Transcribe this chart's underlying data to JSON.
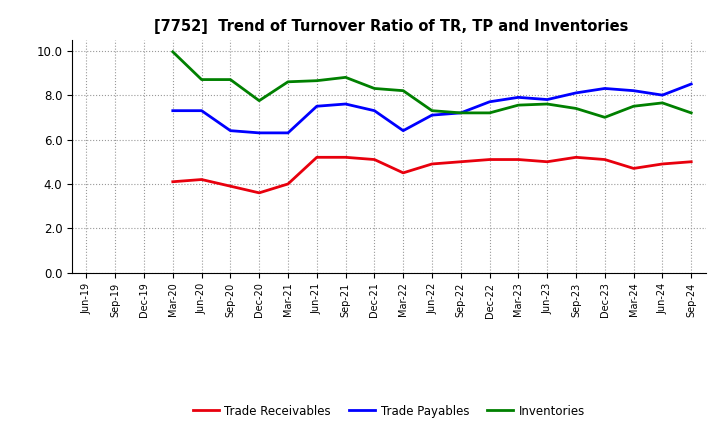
{
  "title": "[7752]  Trend of Turnover Ratio of TR, TP and Inventories",
  "x_labels": [
    "Jun-19",
    "Sep-19",
    "Dec-19",
    "Mar-20",
    "Jun-20",
    "Sep-20",
    "Dec-20",
    "Mar-21",
    "Jun-21",
    "Sep-21",
    "Dec-21",
    "Mar-22",
    "Jun-22",
    "Sep-22",
    "Dec-22",
    "Mar-23",
    "Jun-23",
    "Sep-23",
    "Dec-23",
    "Mar-24",
    "Jun-24",
    "Sep-24"
  ],
  "trade_receivables": [
    null,
    null,
    null,
    4.1,
    4.2,
    3.9,
    3.6,
    4.0,
    5.2,
    5.2,
    5.1,
    4.5,
    4.9,
    5.0,
    5.1,
    5.1,
    5.0,
    5.2,
    5.1,
    4.7,
    4.9,
    5.0
  ],
  "trade_payables": [
    null,
    null,
    null,
    7.3,
    7.3,
    6.4,
    6.3,
    6.3,
    7.5,
    7.6,
    7.3,
    6.4,
    7.1,
    7.2,
    7.7,
    7.9,
    7.8,
    8.1,
    8.3,
    8.2,
    8.0,
    8.5
  ],
  "inventories": [
    null,
    null,
    null,
    9.95,
    8.7,
    8.7,
    7.75,
    8.6,
    8.65,
    8.8,
    8.3,
    8.2,
    7.3,
    7.2,
    7.2,
    7.55,
    7.6,
    7.4,
    7.0,
    7.5,
    7.65,
    7.2
  ],
  "tr_color": "#e8000d",
  "tp_color": "#0000ff",
  "inv_color": "#008000",
  "ylim": [
    0.0,
    10.5
  ],
  "yticks": [
    0.0,
    2.0,
    4.0,
    6.0,
    8.0,
    10.0
  ],
  "legend_labels": [
    "Trade Receivables",
    "Trade Payables",
    "Inventories"
  ],
  "background_color": "#ffffff",
  "grid_color": "#aaaaaa",
  "linewidth": 2.0
}
